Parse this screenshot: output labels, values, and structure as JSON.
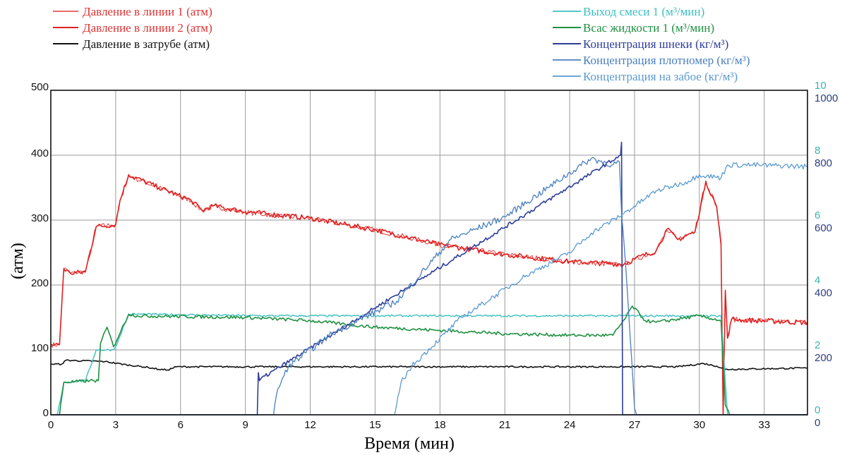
{
  "chart_data": {
    "type": "line",
    "title": "",
    "xlabel": "Время (мин)",
    "ylabel": "(атм)",
    "xlim": [
      0,
      35
    ],
    "ylim": [
      0,
      500
    ],
    "y2lim_flow": [
      0,
      10
    ],
    "y2lim_conc": [
      0,
      1000
    ],
    "grid": true,
    "x_ticks": [
      "0",
      "3",
      "6",
      "9",
      "12",
      "15",
      "18",
      "21",
      "24",
      "27",
      "30",
      "33"
    ],
    "x_tick_values": [
      0,
      3,
      6,
      9,
      12,
      15,
      18,
      21,
      24,
      27,
      30,
      33
    ],
    "y_ticks": [
      "0",
      "100",
      "200",
      "300",
      "400",
      "500"
    ],
    "y_tick_values": [
      0,
      100,
      200,
      300,
      400,
      500
    ],
    "y2_flow_ticks": [
      "0",
      "2",
      "4",
      "6",
      "8",
      "10"
    ],
    "y2_conc_ticks": [
      "0",
      "200",
      "400",
      "600",
      "800",
      "1000"
    ],
    "colors": {
      "flow_axis": "#3bb5b0",
      "conc_axis": "#2e3d80"
    },
    "legend_left": [
      0,
      1,
      2
    ],
    "legend_right": [
      3,
      4,
      5,
      6,
      7
    ],
    "series": [
      {
        "name": "Давление в линии 1 (атм)",
        "axis": "left",
        "color": "#e43a3a",
        "width": 1,
        "x": [
          0,
          0.4,
          0.6,
          0.9,
          1.6,
          2.1,
          3.0,
          3.2,
          3.6,
          5,
          6.5,
          7,
          7.5,
          9,
          12,
          15,
          18,
          21,
          24,
          26.5,
          27,
          28,
          28.5,
          29,
          29.8,
          30.3,
          30.8,
          31.0,
          31.1,
          31.2,
          31.3,
          31.5,
          32,
          35
        ],
        "y": [
          108,
          108,
          226,
          218,
          221,
          290,
          293,
          330,
          368,
          350,
          330,
          314,
          321,
          312,
          302,
          285,
          262,
          247,
          236,
          231,
          239,
          252,
          284,
          270,
          283,
          358,
          322,
          260,
          0,
          190,
          120,
          147,
          146,
          142
        ]
      },
      {
        "name": "Давление в линии 2  (атм)",
        "axis": "left",
        "color": "#e02020",
        "width": 1.6,
        "x": [
          0,
          0.4,
          0.6,
          0.9,
          1.6,
          2.1,
          3.0,
          3.2,
          3.6,
          5,
          6.5,
          7,
          7.5,
          9,
          12,
          15,
          18,
          21,
          24,
          26.5,
          27,
          28,
          28.5,
          29,
          29.8,
          30.3,
          30.8,
          31.0,
          31.1,
          31.2,
          31.3,
          31.5,
          32,
          35
        ],
        "y": [
          108,
          108,
          225,
          218,
          220,
          290,
          293,
          330,
          370,
          350,
          330,
          315,
          322,
          313,
          303,
          285,
          262,
          247,
          236,
          232,
          240,
          253,
          286,
          270,
          282,
          360,
          320,
          264,
          0,
          192,
          118,
          148,
          146,
          142
        ]
      },
      {
        "name": "Давление в затрубе  (атм)",
        "axis": "left",
        "color": "#111111",
        "width": 1.6,
        "x": [
          0,
          0.5,
          0.7,
          2.5,
          3.5,
          4.5,
          5.0,
          5.4,
          5.8,
          6.5,
          10,
          20,
          29,
          30.2,
          30.8,
          31.2,
          35
        ],
        "y": [
          78,
          78,
          84,
          82,
          77,
          73,
          70,
          69,
          74,
          74,
          74,
          74,
          74,
          79,
          75,
          70,
          72
        ]
      },
      {
        "name": "Выход смеси 1 (м³/мин)",
        "axis": "flow",
        "color": "#3bbfc0",
        "width": 1.4,
        "x": [
          0,
          0.3,
          0.6,
          1.6,
          2.1,
          2.9,
          3.0,
          3.6,
          4,
          10,
          20,
          26.4,
          27,
          31.0,
          31.3,
          35
        ],
        "y": [
          0,
          0,
          1.0,
          1.05,
          2.0,
          2.0,
          2.1,
          3.1,
          3.1,
          3.05,
          3.05,
          3.05,
          3.05,
          3.05,
          0,
          0
        ]
      },
      {
        "name": "Всас жидкости 1  (м³/мин)",
        "axis": "flow",
        "color": "#1e9040",
        "width": 1.6,
        "x": [
          0,
          0.4,
          0.6,
          1.8,
          2.2,
          2.3,
          2.6,
          2.9,
          3.6,
          4,
          9,
          12,
          15,
          18,
          21,
          24,
          26.0,
          26.6,
          26.9,
          27.5,
          28,
          30,
          31.0,
          31.2,
          31.4,
          35
        ],
        "y": [
          0,
          0,
          1.0,
          1.05,
          1.05,
          2.2,
          2.7,
          2.1,
          3.1,
          3.05,
          3.0,
          2.9,
          2.7,
          2.6,
          2.5,
          2.45,
          2.45,
          3.0,
          3.35,
          2.9,
          2.85,
          3.05,
          2.9,
          0.3,
          0,
          0
        ]
      },
      {
        "name": "Концентрация шнеки (кг/м³)",
        "axis": "conc",
        "color": "#2e3d9a",
        "width": 1.6,
        "x": [
          0,
          9.55,
          9.6,
          9.65,
          9.7,
          26.35,
          26.4,
          26.45,
          26.5,
          35
        ],
        "y": [
          0,
          0,
          130,
          105,
          110,
          800,
          840,
          0,
          0,
          0
        ]
      },
      {
        "name": "Концентрация плотномер (кг/м³)",
        "axis": "conc",
        "color": "#4a7fc0",
        "width": 1.3,
        "x": [
          0,
          10.3,
          10.5,
          11,
          13,
          16,
          18.5,
          21,
          23,
          25,
          26,
          26.3,
          26.4,
          26.5,
          26.6,
          27.0,
          27.1,
          35
        ],
        "y": [
          0,
          0,
          80,
          150,
          250,
          350,
          540,
          610,
          700,
          790,
          770,
          780,
          620,
          540,
          450,
          20,
          0,
          0
        ]
      },
      {
        "name": "Концентрация на забое (кг/м³)",
        "axis": "conc",
        "color": "#5a9ad0",
        "width": 1.3,
        "x": [
          0,
          15.9,
          16.2,
          16.7,
          19,
          22,
          24,
          25,
          26.5,
          28,
          29.5,
          30,
          31.0,
          31.3,
          32.4,
          35
        ],
        "y": [
          0,
          0,
          100,
          150,
          300,
          430,
          500,
          560,
          620,
          690,
          720,
          740,
          730,
          770,
          770,
          765
        ]
      }
    ]
  }
}
